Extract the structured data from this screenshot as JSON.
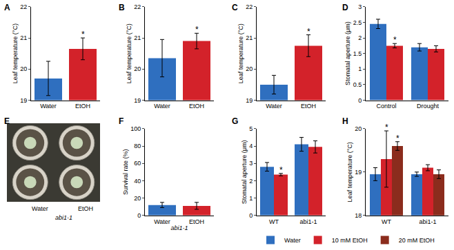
{
  "chart_data": [
    {
      "panel": "A",
      "type": "bar",
      "y_label": "Leaf temperature (°C)",
      "categories": [
        "Water",
        "EtOH"
      ],
      "values": [
        19.7,
        20.65
      ],
      "errors": [
        0.55,
        0.35
      ],
      "colors": [
        "#2f6fbf",
        "#d3222a"
      ],
      "ylim": [
        19,
        22
      ],
      "yticks": [
        19,
        20,
        21,
        22
      ],
      "annotations": [
        {
          "x": "EtOH",
          "text": "*"
        }
      ]
    },
    {
      "panel": "B",
      "type": "bar",
      "y_label": "Leaf temperature (°C)",
      "categories": [
        "Water",
        "EtOH"
      ],
      "values": [
        20.35,
        20.9
      ],
      "errors": [
        0.6,
        0.25
      ],
      "colors": [
        "#2f6fbf",
        "#d3222a"
      ],
      "ylim": [
        19,
        22
      ],
      "yticks": [
        19,
        20,
        21,
        22
      ],
      "annotations": [
        {
          "x": "EtOH",
          "text": "*"
        }
      ]
    },
    {
      "panel": "C",
      "type": "bar",
      "y_label": "Leaf temperature (°C)",
      "categories": [
        "Water",
        "EtOH"
      ],
      "values": [
        19.5,
        20.75
      ],
      "errors": [
        0.3,
        0.35
      ],
      "colors": [
        "#2f6fbf",
        "#d3222a"
      ],
      "ylim": [
        19,
        22
      ],
      "yticks": [
        19,
        20,
        21,
        22
      ],
      "annotations": [
        {
          "x": "EtOH",
          "text": "*"
        }
      ]
    },
    {
      "panel": "D",
      "type": "bar",
      "y_label": "Stomatal aperture (μm)",
      "categories": [
        "Control",
        "Drought"
      ],
      "series": [
        {
          "name": "Water",
          "color": "#2f6fbf",
          "values": [
            2.45,
            1.7
          ],
          "errors": [
            0.15,
            0.12
          ]
        },
        {
          "name": "10 mM EtOH",
          "color": "#d3222a",
          "values": [
            1.75,
            1.65
          ],
          "errors": [
            0.07,
            0.1
          ]
        }
      ],
      "ylim": [
        0,
        3
      ],
      "yticks": [
        0,
        0.5,
        1,
        1.5,
        2,
        2.5,
        3
      ],
      "annotations": [
        {
          "x": "Control",
          "series": "10 mM EtOH",
          "text": "*"
        }
      ]
    },
    {
      "panel": "E",
      "type": "image",
      "labels": [
        "Water",
        "EtOH"
      ],
      "caption": "abi1-1"
    },
    {
      "panel": "F",
      "type": "bar",
      "y_label": "Survival rate (%)",
      "x_label": "abi1-1",
      "categories": [
        "Water",
        "EtOH"
      ],
      "values": [
        12,
        11
      ],
      "errors": [
        3,
        4
      ],
      "colors": [
        "#2f6fbf",
        "#d3222a"
      ],
      "ylim": [
        0,
        100
      ],
      "yticks": [
        0,
        20,
        40,
        60,
        80,
        100
      ]
    },
    {
      "panel": "G",
      "type": "bar",
      "y_label": "Stomatal aperture (μm)",
      "categories": [
        "WT",
        "abi1-1"
      ],
      "series": [
        {
          "name": "Water",
          "color": "#2f6fbf",
          "values": [
            2.8,
            4.1
          ],
          "errors": [
            0.25,
            0.4
          ]
        },
        {
          "name": "10 mM EtOH",
          "color": "#d3222a",
          "values": [
            2.35,
            3.95
          ],
          "errors": [
            0.07,
            0.35
          ]
        }
      ],
      "ylim": [
        0,
        5
      ],
      "yticks": [
        0,
        1,
        2,
        3,
        4,
        5
      ],
      "annotations": [
        {
          "x": "WT",
          "series": "10 mM EtOH",
          "text": "*"
        }
      ]
    },
    {
      "panel": "H",
      "type": "bar",
      "y_label": "Leaf temperature (°C)",
      "categories": [
        "WT",
        "abi1-1"
      ],
      "series": [
        {
          "name": "Water",
          "color": "#2f6fbf",
          "values": [
            18.95,
            18.95
          ],
          "errors": [
            0.15,
            0.05
          ]
        },
        {
          "name": "10 mM EtOH",
          "color": "#d3222a",
          "values": [
            19.3,
            19.1
          ],
          "errors": [
            0.65,
            0.07
          ]
        },
        {
          "name": "20 mM EtOH",
          "color": "#8b2c1d",
          "values": [
            19.6,
            18.95
          ],
          "errors": [
            0.1,
            0.1
          ]
        }
      ],
      "ylim": [
        18,
        20
      ],
      "yticks": [
        18,
        19,
        20
      ],
      "legend": "bottom right",
      "annotations": [
        {
          "x": "WT",
          "series": "10 mM EtOH",
          "text": "*"
        },
        {
          "x": "WT",
          "series": "20 mM EtOH",
          "text": "*"
        }
      ]
    }
  ]
}
